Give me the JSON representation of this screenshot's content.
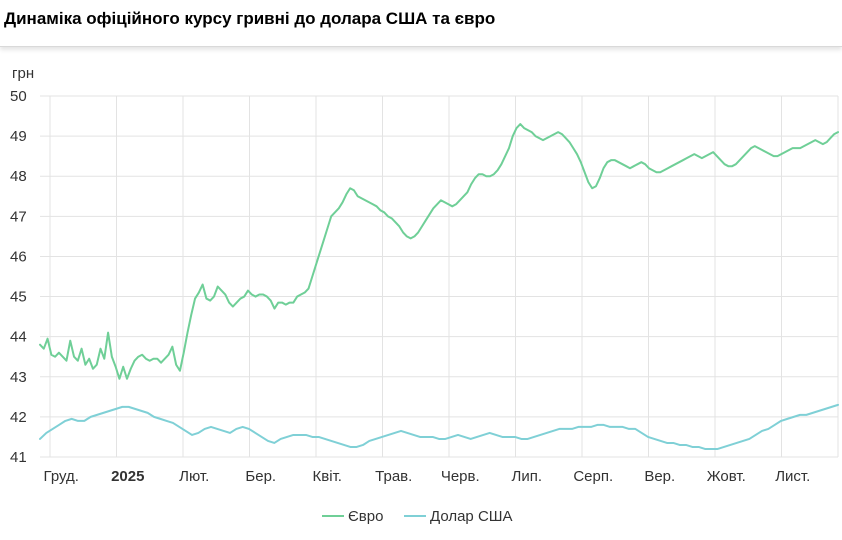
{
  "title": "Динаміка офіційного курсу гривні до долара США та євро",
  "chart_data": {
    "type": "line",
    "ylabel": "грн",
    "ylim": [
      41,
      50
    ],
    "yticks": [
      41,
      42,
      43,
      44,
      45,
      46,
      47,
      48,
      49,
      50
    ],
    "x_tick_labels": [
      {
        "label": "Груд.",
        "bold": false
      },
      {
        "label": "2025",
        "bold": true
      },
      {
        "label": "Лют.",
        "bold": false
      },
      {
        "label": "Бер.",
        "bold": false
      },
      {
        "label": "Квіт.",
        "bold": false
      },
      {
        "label": "Трав.",
        "bold": false
      },
      {
        "label": "Черв.",
        "bold": false
      },
      {
        "label": "Лип.",
        "bold": false
      },
      {
        "label": "Серп.",
        "bold": false
      },
      {
        "label": "Вер.",
        "bold": false
      },
      {
        "label": "Жовт.",
        "bold": false
      },
      {
        "label": "Лист.",
        "bold": false
      }
    ],
    "grid": true,
    "legend_position": "bottom-center",
    "series": [
      {
        "name": "Євро",
        "color": "#6fcf97",
        "values": [
          43.8,
          43.7,
          43.95,
          43.55,
          43.5,
          43.6,
          43.5,
          43.4,
          43.9,
          43.5,
          43.4,
          43.7,
          43.3,
          43.45,
          43.2,
          43.3,
          43.7,
          43.45,
          44.1,
          43.5,
          43.25,
          42.95,
          43.25,
          42.95,
          43.2,
          43.4,
          43.5,
          43.55,
          43.45,
          43.4,
          43.45,
          43.45,
          43.35,
          43.45,
          43.55,
          43.75,
          43.3,
          43.15,
          43.6,
          44.1,
          44.55,
          44.95,
          45.1,
          45.3,
          44.95,
          44.9,
          45.0,
          45.25,
          45.15,
          45.05,
          44.85,
          44.75,
          44.85,
          44.95,
          45.0,
          45.15,
          45.05,
          45.0,
          45.05,
          45.05,
          45.0,
          44.9,
          44.7,
          44.85,
          44.85,
          44.8,
          44.85,
          44.85,
          45.0,
          45.05,
          45.1,
          45.2,
          45.5,
          45.8,
          46.1,
          46.4,
          46.7,
          47.0,
          47.1,
          47.2,
          47.35,
          47.55,
          47.7,
          47.65,
          47.5,
          47.45,
          47.4,
          47.35,
          47.3,
          47.25,
          47.15,
          47.1,
          47.0,
          46.95,
          46.85,
          46.75,
          46.6,
          46.5,
          46.45,
          46.5,
          46.6,
          46.75,
          46.9,
          47.05,
          47.2,
          47.3,
          47.4,
          47.35,
          47.3,
          47.25,
          47.3,
          47.4,
          47.5,
          47.6,
          47.8,
          47.95,
          48.05,
          48.05,
          48.0,
          48.0,
          48.05,
          48.15,
          48.3,
          48.5,
          48.7,
          49.0,
          49.2,
          49.3,
          49.2,
          49.15,
          49.1,
          49.0,
          48.95,
          48.9,
          48.95,
          49.0,
          49.05,
          49.1,
          49.05,
          48.95,
          48.85,
          48.7,
          48.55,
          48.35,
          48.1,
          47.85,
          47.7,
          47.75,
          47.95,
          48.2,
          48.35,
          48.4,
          48.4,
          48.35,
          48.3,
          48.25,
          48.2,
          48.25,
          48.3,
          48.35,
          48.3,
          48.2,
          48.15,
          48.1,
          48.1,
          48.15,
          48.2,
          48.25,
          48.3,
          48.35,
          48.4,
          48.45,
          48.5,
          48.55,
          48.5,
          48.45,
          48.5,
          48.55,
          48.6,
          48.5,
          48.4,
          48.3,
          48.25,
          48.25,
          48.3,
          48.4,
          48.5,
          48.6,
          48.7,
          48.75,
          48.7,
          48.65,
          48.6,
          48.55,
          48.5,
          48.5,
          48.55,
          48.6,
          48.65,
          48.7,
          48.7,
          48.7,
          48.75,
          48.8,
          48.85,
          48.9,
          48.85,
          48.8,
          48.85,
          48.95,
          49.05,
          49.1
        ]
      },
      {
        "name": "Долар США",
        "color": "#7fd0d6",
        "values": [
          41.45,
          41.6,
          41.7,
          41.8,
          41.9,
          41.95,
          41.9,
          41.9,
          42.0,
          42.05,
          42.1,
          42.15,
          42.2,
          42.25,
          42.25,
          42.2,
          42.15,
          42.1,
          42.0,
          41.95,
          41.9,
          41.85,
          41.75,
          41.65,
          41.55,
          41.6,
          41.7,
          41.75,
          41.7,
          41.65,
          41.6,
          41.7,
          41.75,
          41.7,
          41.6,
          41.5,
          41.4,
          41.35,
          41.45,
          41.5,
          41.55,
          41.55,
          41.55,
          41.5,
          41.5,
          41.45,
          41.4,
          41.35,
          41.3,
          41.25,
          41.25,
          41.3,
          41.4,
          41.45,
          41.5,
          41.55,
          41.6,
          41.65,
          41.6,
          41.55,
          41.5,
          41.5,
          41.5,
          41.45,
          41.45,
          41.5,
          41.55,
          41.5,
          41.45,
          41.5,
          41.55,
          41.6,
          41.55,
          41.5,
          41.5,
          41.5,
          41.45,
          41.45,
          41.5,
          41.55,
          41.6,
          41.65,
          41.7,
          41.7,
          41.7,
          41.75,
          41.75,
          41.75,
          41.8,
          41.8,
          41.75,
          41.75,
          41.75,
          41.7,
          41.7,
          41.6,
          41.5,
          41.45,
          41.4,
          41.35,
          41.35,
          41.3,
          41.3,
          41.25,
          41.25,
          41.2,
          41.2,
          41.2,
          41.25,
          41.3,
          41.35,
          41.4,
          41.45,
          41.55,
          41.65,
          41.7,
          41.8,
          41.9,
          41.95,
          42.0,
          42.05,
          42.05,
          42.1,
          42.15,
          42.2,
          42.25,
          42.3
        ]
      }
    ]
  }
}
